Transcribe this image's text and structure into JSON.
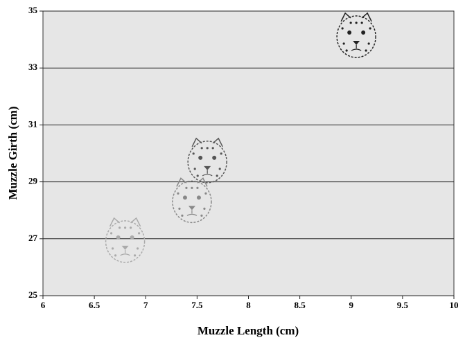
{
  "chart_data": {
    "type": "scatter",
    "x_label": "Muzzle Length (cm)",
    "y_label": "Muzzle Girth (cm)",
    "x": [
      9.05,
      7.6,
      7.45,
      6.8
    ],
    "values": [
      34.1,
      29.7,
      28.3,
      26.9
    ],
    "colors": [
      "#222222",
      "#555555",
      "#888888",
      "#aaaaaa"
    ],
    "xlim": [
      6,
      10
    ],
    "xticks": [
      6,
      6.5,
      7,
      7.5,
      8,
      8.5,
      9,
      9.5,
      10
    ],
    "ylim": [
      25,
      35
    ],
    "yticks": [
      25,
      27,
      29,
      31,
      33,
      35
    ],
    "grid": true
  }
}
